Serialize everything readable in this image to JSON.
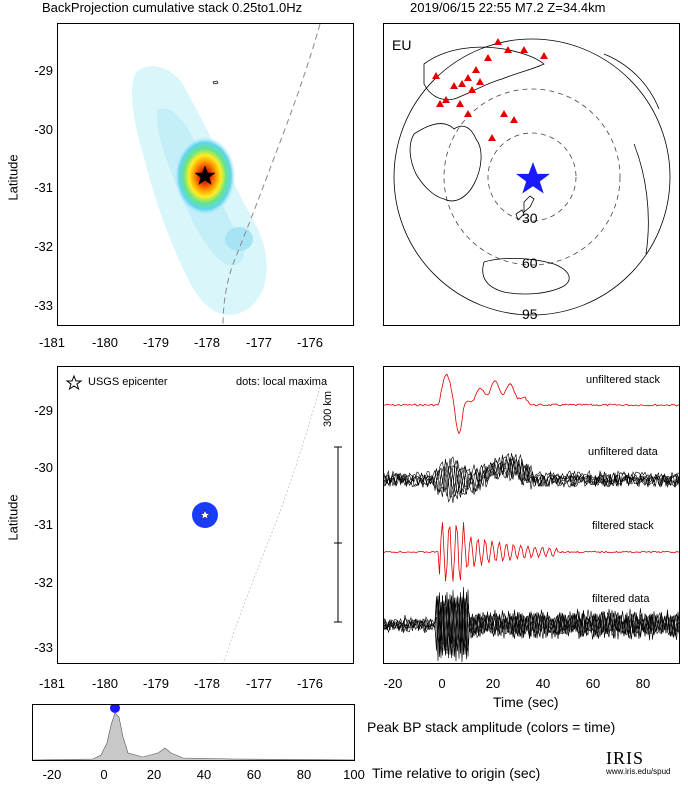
{
  "header": {
    "left_title": "BackProjection cumulative stack 0.25to1.0Hz",
    "right_title": "2019/06/15 22:55  M7.2  Z=34.4km"
  },
  "map_panel": {
    "lon_ticks": [
      "-181",
      "-180",
      "-179",
      "-178",
      "-177",
      "-176"
    ],
    "lat_ticks": [
      "-29",
      "-30",
      "-31",
      "-32",
      "-33"
    ],
    "ylabel": "Latitude"
  },
  "globe_panel": {
    "region_label": "EU",
    "ring_labels": [
      "30",
      "60",
      "95"
    ],
    "colors": {
      "stations": "#e00000",
      "epicenter": "#1a1aff"
    }
  },
  "maxima_panel": {
    "legend_epicenter": "USGS epicenter",
    "legend_dots": "dots: local maxima",
    "scale_label": "300 km",
    "lon_ticks": [
      "-181",
      "-180",
      "-179",
      "-178",
      "-177",
      "-176"
    ],
    "lat_ticks": [
      "-29",
      "-30",
      "-31",
      "-32",
      "-33"
    ],
    "ylabel": "Latitude"
  },
  "traces_panel": {
    "labels": [
      "unfiltered stack",
      "unfiltered data",
      "filtered stack",
      "filtered data"
    ],
    "time_ticks": [
      "-20",
      "0",
      "20",
      "40",
      "60",
      "80"
    ],
    "xlabel": "Time (sec)",
    "colors": {
      "stack": "#e00000",
      "data": "#000000"
    }
  },
  "peak_panel": {
    "caption": "Peak BP stack amplitude (colors = time)",
    "time_ticks": [
      "-20",
      "0",
      "20",
      "40",
      "60",
      "80",
      "100"
    ],
    "xlabel": "Time relative to origin (sec)"
  },
  "logo": {
    "text": "IRIS",
    "subtext": "www.iris.edu/spud"
  }
}
